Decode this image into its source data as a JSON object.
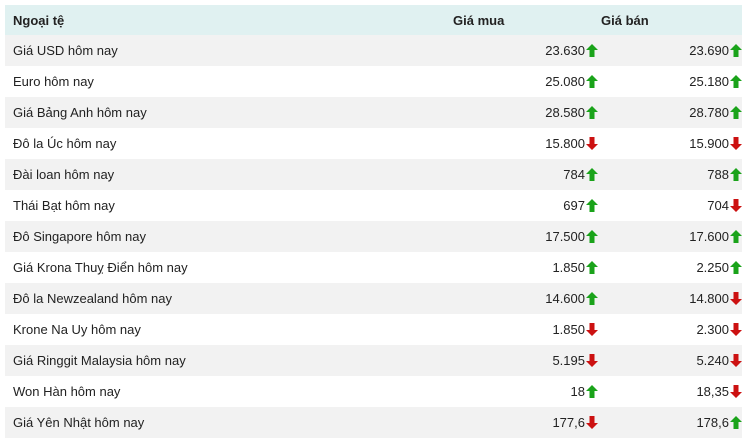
{
  "header": {
    "currency": "Ngoại tệ",
    "buy": "Giá mua",
    "sell": "Giá bán"
  },
  "colors": {
    "up": "#1aa31a",
    "down": "#cc1111",
    "header_bg": "#e0f1f1"
  },
  "rows": [
    {
      "name": "Giá USD hôm nay",
      "buy": "23.630",
      "buy_trend": "up",
      "sell": "23.690",
      "sell_trend": "up"
    },
    {
      "name": "Euro hôm nay",
      "buy": "25.080",
      "buy_trend": "up",
      "sell": "25.180",
      "sell_trend": "up"
    },
    {
      "name": "Giá Bảng Anh hôm nay",
      "buy": "28.580",
      "buy_trend": "up",
      "sell": "28.780",
      "sell_trend": "up"
    },
    {
      "name": "Đô la Úc hôm nay",
      "buy": "15.800",
      "buy_trend": "down",
      "sell": "15.900",
      "sell_trend": "down"
    },
    {
      "name": "Đài loan hôm nay",
      "buy": "784",
      "buy_trend": "up",
      "sell": "788",
      "sell_trend": "up"
    },
    {
      "name": "Thái Bạt hôm nay",
      "buy": "697",
      "buy_trend": "up",
      "sell": "704",
      "sell_trend": "down"
    },
    {
      "name": "Đô Singapore hôm nay",
      "buy": "17.500",
      "buy_trend": "up",
      "sell": "17.600",
      "sell_trend": "up"
    },
    {
      "name": "Giá Krona Thuỵ Điển hôm nay",
      "buy": "1.850",
      "buy_trend": "up",
      "sell": "2.250",
      "sell_trend": "up"
    },
    {
      "name": "Đô la Newzealand hôm nay",
      "buy": "14.600",
      "buy_trend": "up",
      "sell": "14.800",
      "sell_trend": "down"
    },
    {
      "name": "Krone Na Uy hôm nay",
      "buy": "1.850",
      "buy_trend": "down",
      "sell": "2.300",
      "sell_trend": "down"
    },
    {
      "name": "Giá Ringgit Malaysia hôm nay",
      "buy": "5.195",
      "buy_trend": "down",
      "sell": "5.240",
      "sell_trend": "down"
    },
    {
      "name": "Won Hàn hôm nay",
      "buy": "18",
      "buy_trend": "up",
      "sell": "18,35",
      "sell_trend": "down"
    },
    {
      "name": "Giá Yên Nhật hôm nay",
      "buy": "177,6",
      "buy_trend": "down",
      "sell": "178,6",
      "sell_trend": "up"
    }
  ]
}
